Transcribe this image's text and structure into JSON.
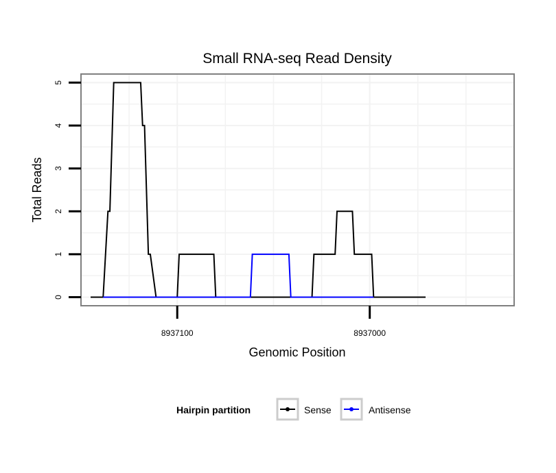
{
  "chart_data": {
    "type": "line",
    "title": "Small RNA-seq Read Density",
    "xlabel": "Genomic Position",
    "ylabel": "Total Reads",
    "xlim": [
      8937150,
      8936925
    ],
    "ylim": [
      -0.2,
      5.2
    ],
    "x_reversed": true,
    "grid": true,
    "x_ticks": [
      8937100,
      8937000
    ],
    "x_tick_labels": [
      "8937100",
      "8937000"
    ],
    "y_ticks": [
      0,
      1,
      2,
      3,
      4,
      5
    ],
    "y_tick_labels": [
      "0",
      "1",
      "2",
      "3",
      "4",
      "5"
    ],
    "legend": {
      "title": "Hairpin partition",
      "position": "bottom",
      "entries": [
        {
          "label": "Sense",
          "color": "#000000"
        },
        {
          "label": "Antisense",
          "color": "#0000ff"
        }
      ]
    },
    "series": [
      {
        "name": "Sense",
        "color": "#000000",
        "x": [
          8937145,
          8937138.5,
          8937136,
          8937135,
          8937133,
          8937119,
          8937118,
          8937117,
          8937115,
          8937114,
          8937111,
          8937100,
          8937099,
          8937081,
          8937080,
          8937030,
          8937029,
          8937018,
          8937017,
          8937009,
          8937008,
          8936999,
          8936998,
          8936971
        ],
        "values": [
          0,
          0,
          2,
          2,
          5,
          5,
          4,
          4,
          1,
          1,
          0,
          0,
          1,
          1,
          0,
          0,
          1,
          1,
          2,
          2,
          1,
          1,
          0,
          0
        ]
      },
      {
        "name": "Antisense",
        "color": "#0000ff",
        "x": [
          8937138.5,
          8937062,
          8937061,
          8937042,
          8937041,
          8936998
        ],
        "values": [
          0,
          0,
          1,
          1,
          0,
          0
        ]
      }
    ]
  }
}
